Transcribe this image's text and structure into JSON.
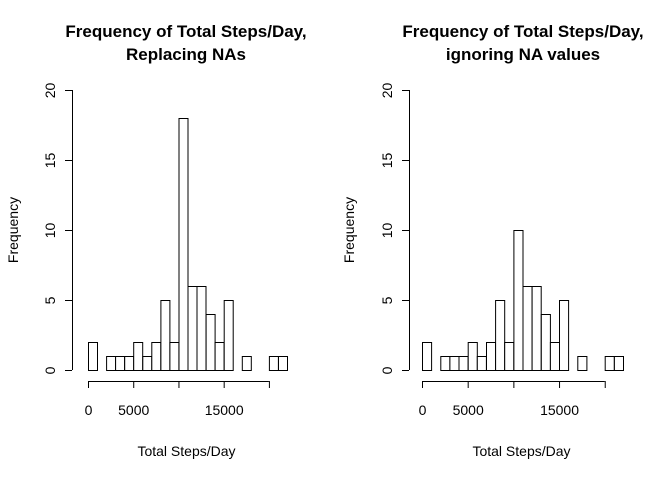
{
  "chart_data": [
    {
      "type": "bar",
      "title_lines": [
        "Frequency of Total Steps/Day,",
        "Replacing NAs"
      ],
      "xlabel": "Total Steps/Day",
      "ylabel": "Frequency",
      "bin_width": 1000,
      "x_start": 0,
      "x_ticks": [
        0,
        5000,
        10000,
        15000,
        20000
      ],
      "x_tick_labels": [
        "0",
        "5000",
        "",
        "15000",
        ""
      ],
      "xlim": [
        0,
        22000
      ],
      "ylim": [
        0,
        20
      ],
      "y_ticks": [
        0,
        5,
        10,
        15,
        20
      ],
      "y_tick_labels": [
        "0",
        "5",
        "10",
        "15",
        "20"
      ],
      "values": [
        2,
        0,
        1,
        1,
        1,
        2,
        1,
        2,
        5,
        2,
        18,
        6,
        6,
        4,
        2,
        5,
        0,
        1,
        0,
        0,
        1,
        1
      ],
      "grid": false
    },
    {
      "type": "bar",
      "title_lines": [
        "Frequency of Total Steps/Day,",
        "ignoring NA values"
      ],
      "xlabel": "Total Steps/Day",
      "ylabel": "Frequency",
      "bin_width": 1000,
      "x_start": 0,
      "x_ticks": [
        0,
        5000,
        10000,
        15000,
        20000
      ],
      "x_tick_labels": [
        "0",
        "5000",
        "",
        "15000",
        ""
      ],
      "xlim": [
        0,
        22000
      ],
      "ylim": [
        0,
        20
      ],
      "y_ticks": [
        0,
        5,
        10,
        15,
        20
      ],
      "y_tick_labels": [
        "0",
        "5",
        "10",
        "15",
        "20"
      ],
      "values": [
        2,
        0,
        1,
        1,
        1,
        2,
        1,
        2,
        5,
        2,
        10,
        6,
        6,
        4,
        2,
        5,
        0,
        1,
        0,
        0,
        1,
        1
      ],
      "grid": false
    }
  ]
}
